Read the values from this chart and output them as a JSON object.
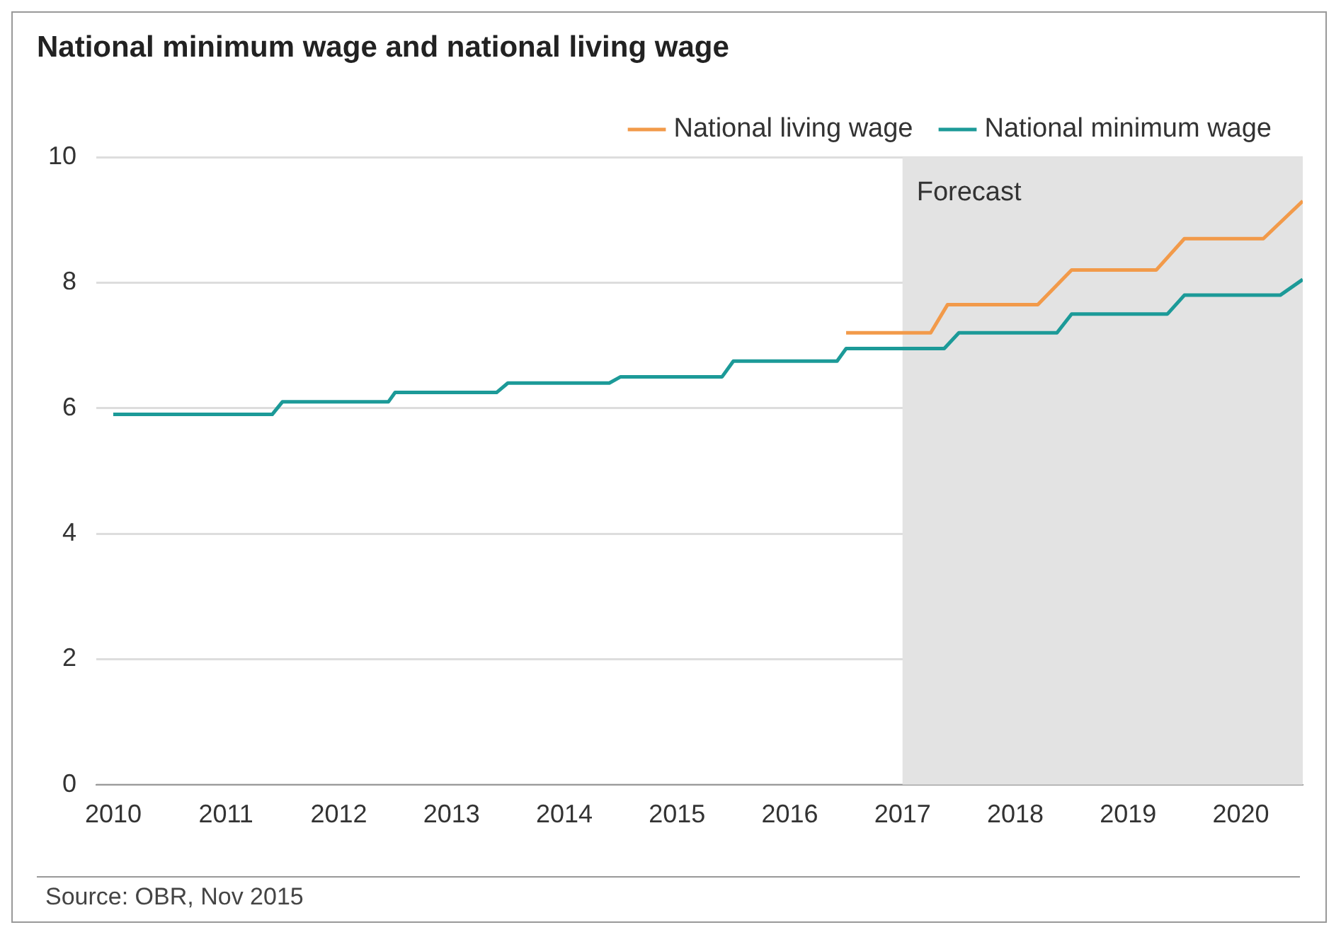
{
  "chart_data": {
    "type": "line",
    "title": "National minimum wage and national living wage",
    "series": [
      {
        "name": "National living wage",
        "color": "#f29a4a",
        "x": [
          2016.5,
          2017.25,
          2017.4,
          2018.2,
          2018.5,
          2019.25,
          2019.5,
          2020.2,
          2020.55
        ],
        "values": [
          7.2,
          7.2,
          7.65,
          7.65,
          8.2,
          8.2,
          8.7,
          8.7,
          9.3
        ]
      },
      {
        "name": "National minimum wage",
        "color": "#1c9a98",
        "x": [
          2010,
          2011.41,
          2011.5,
          2012.44,
          2012.5,
          2013.4,
          2013.5,
          2014.4,
          2014.5,
          2015.4,
          2015.5,
          2016.42,
          2016.5,
          2017.37,
          2017.5,
          2018.37,
          2018.5,
          2019.35,
          2019.5,
          2020.35,
          2020.55
        ],
        "values": [
          5.9,
          5.9,
          6.1,
          6.1,
          6.25,
          6.25,
          6.4,
          6.4,
          6.5,
          6.5,
          6.75,
          6.75,
          6.95,
          6.95,
          7.2,
          7.2,
          7.5,
          7.5,
          7.8,
          7.8,
          8.05
        ]
      }
    ],
    "xlim": [
      2009.85,
      2020.55
    ],
    "xticks": [
      2010,
      2011,
      2012,
      2013,
      2014,
      2015,
      2016,
      2017,
      2018,
      2019,
      2020
    ],
    "ylim": [
      0,
      10
    ],
    "yticks": [
      0,
      2,
      4,
      6,
      8,
      10
    ],
    "bands": [
      {
        "axis": "x",
        "from": 2017,
        "to": 2020.55,
        "label": "Forecast",
        "color": "#e3e3e3"
      }
    ],
    "grid": "y",
    "legend": "top right",
    "marker": "none",
    "line_style": "solid",
    "annotations": [
      "Source: OBR, Nov 2015"
    ]
  }
}
